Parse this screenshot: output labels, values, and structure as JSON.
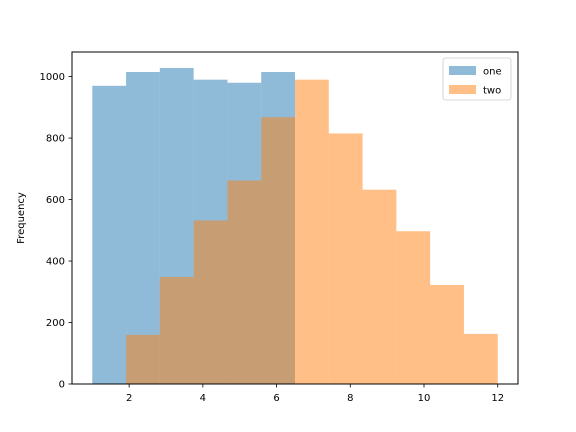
{
  "chart_data": {
    "type": "bar",
    "title": "",
    "xlabel": "",
    "ylabel": "Frequency",
    "xlim": [
      0.45,
      12.55
    ],
    "ylim": [
      0,
      1080
    ],
    "xticks": [
      2,
      4,
      6,
      8,
      10,
      12
    ],
    "yticks": [
      0,
      200,
      400,
      600,
      800,
      1000
    ],
    "grid": false,
    "legend_position": "top-right",
    "series": [
      {
        "name": "one",
        "color": "#1f77b4",
        "opacity": 0.5,
        "bin_edges": [
          1.0,
          1.917,
          2.833,
          3.75,
          4.667,
          5.583,
          6.5
        ],
        "values": [
          970,
          1015,
          1028,
          990,
          980,
          1015
        ]
      },
      {
        "name": "two",
        "color": "#ff7f0e",
        "opacity": 0.5,
        "bin_edges": [
          1.917,
          2.833,
          3.75,
          4.667,
          5.583,
          6.5,
          7.417,
          8.333,
          9.25,
          10.167,
          11.083,
          12.0
        ],
        "values": [
          160,
          348,
          532,
          662,
          868,
          990,
          815,
          632,
          497,
          322,
          163
        ]
      }
    ]
  }
}
